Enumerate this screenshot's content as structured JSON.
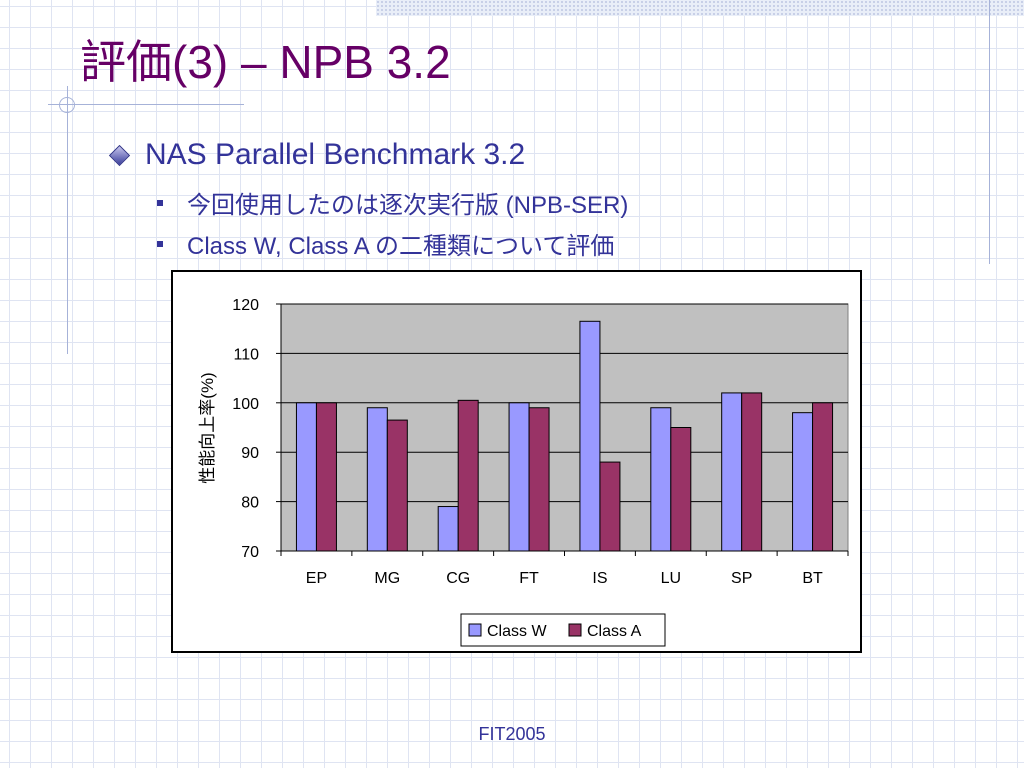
{
  "slide": {
    "title": "評価(3) – NPB 3.2",
    "bullet_main": "NAS Parallel Benchmark 3.2",
    "sub_bullets": [
      "今回使用したのは逐次実行版 (NPB-SER)",
      "Class W, Class A の二種類について評価"
    ],
    "footer": "FIT2005"
  },
  "colors": {
    "title": "#660066",
    "text": "#333399",
    "plot_bg": "#c0c0c0",
    "class_w": "#9999ff",
    "class_a": "#993366"
  },
  "chart_data": {
    "type": "bar",
    "categories": [
      "EP",
      "MG",
      "CG",
      "FT",
      "IS",
      "LU",
      "SP",
      "BT"
    ],
    "series": [
      {
        "name": "Class W",
        "color": "#9999ff",
        "values": [
          100,
          99,
          79,
          100,
          116.5,
          99,
          102,
          98
        ]
      },
      {
        "name": "Class A",
        "color": "#993366",
        "values": [
          100,
          96.5,
          100.5,
          99,
          88,
          95,
          102,
          100
        ]
      }
    ],
    "ylabel": "性能向上率(%)",
    "xlabel": "",
    "ylim": [
      70,
      120
    ],
    "yticks": [
      70,
      80,
      90,
      100,
      110,
      120
    ],
    "grid": true,
    "legend": "bottom-center"
  }
}
